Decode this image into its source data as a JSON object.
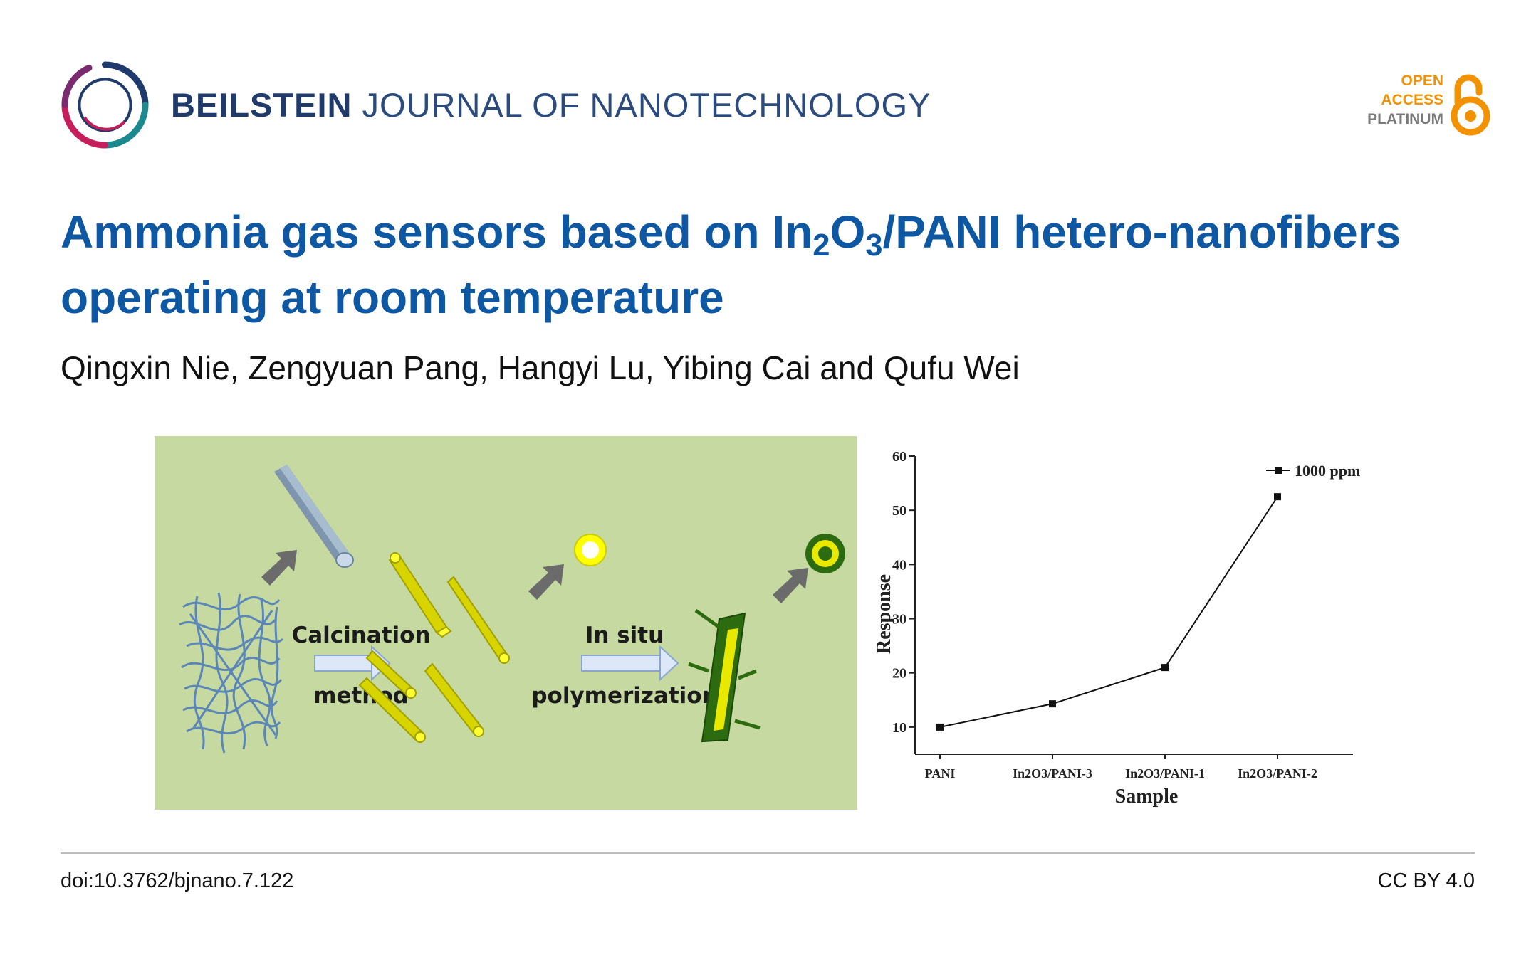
{
  "journal": {
    "name_bold": "BEILSTEIN",
    "name_rest": "JOURNAL OF NANOTECHNOLOGY"
  },
  "open_access": {
    "line1": "OPEN",
    "line2": "ACCESS",
    "line3": "PLATINUM"
  },
  "title": {
    "part1": "Ammonia gas sensors based on In",
    "sub1": "2",
    "part2": "O",
    "sub2": "3",
    "part3": "/PANI hetero-nanofibers operating at room temperature"
  },
  "authors": "Qingxin Nie, Zengyuan Pang, Hangyi Lu, Yibing Cai and Qufu Wei",
  "graphical_abstract": {
    "step1_line1": "Calcination",
    "step1_line2": "method",
    "step2_line1": "In situ",
    "step2_line2": "polymerization"
  },
  "chart_data": {
    "type": "line",
    "categories": [
      "PANI",
      "In2O3/PANI-3",
      "In2O3/PANI-1",
      "In2O3/PANI-2"
    ],
    "series": [
      {
        "name": "1000 ppm",
        "values": [
          10,
          14.3,
          21,
          52.5
        ]
      }
    ],
    "xlabel": "Sample",
    "ylabel": "Response",
    "ylim": [
      5,
      60
    ],
    "yticks": [
      10,
      20,
      30,
      40,
      50,
      60
    ],
    "legend_position": "top-right",
    "grid": false
  },
  "footer": {
    "doi": "doi:10.3762/bjnano.7.122",
    "license": "CC BY 4.0"
  },
  "colors": {
    "title": "#0d57a3",
    "journal": "#1f3a6b",
    "oa_orange": "#f39200",
    "ga_background": "#c5d9a0"
  }
}
